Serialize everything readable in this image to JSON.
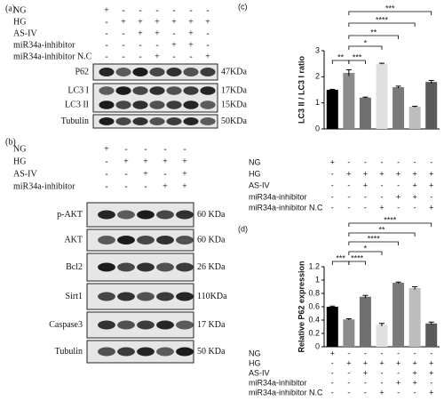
{
  "blots": [
    {
      "label": "(a)",
      "rows": [
        {
          "label": "NG",
          "signs": [
            "+",
            "-",
            "-",
            "-",
            "-",
            "-",
            "-"
          ]
        },
        {
          "label": "HG",
          "signs": [
            "-",
            "+",
            "+",
            "+",
            "+",
            "+",
            "+"
          ]
        },
        {
          "label": "AS-IV",
          "signs": [
            "-",
            "-",
            "+",
            "+",
            "-",
            "+",
            "-"
          ]
        },
        {
          "label": "miR34a-inhibitor",
          "signs": [
            "-",
            "-",
            "-",
            "-",
            "+",
            "+",
            "-"
          ]
        },
        {
          "label": "miR34a-inhibitor N.C",
          "signs": [
            "-",
            "-",
            "-",
            "+",
            "-",
            "-",
            "+"
          ]
        }
      ],
      "bands": [
        {
          "names": [
            "P62"
          ],
          "sizes": [
            "47KDa"
          ]
        },
        {
          "names": [
            "LC3 I",
            "LC3 II"
          ],
          "sizes": [
            "17KDa",
            "15KDa"
          ]
        },
        {
          "names": [
            "Tubulin"
          ],
          "sizes": [
            "50KDa"
          ]
        }
      ]
    },
    {
      "label": "(b)",
      "rows": [
        {
          "label": "NG",
          "signs": [
            "+",
            "-",
            "-",
            "-",
            "-"
          ]
        },
        {
          "label": "HG",
          "signs": [
            "-",
            "+",
            "+",
            "+",
            "+"
          ]
        },
        {
          "label": "AS-IV",
          "signs": [
            "-",
            "-",
            "+",
            "-",
            "+"
          ]
        },
        {
          "label": "miR34a-inhibitor",
          "signs": [
            "-",
            "-",
            "-",
            "+",
            "+"
          ]
        }
      ],
      "bands": [
        {
          "names": [
            "p-AKT"
          ],
          "sizes": [
            "60 KDa"
          ]
        },
        {
          "names": [
            "AKT"
          ],
          "sizes": [
            "60 KDa"
          ]
        },
        {
          "names": [
            "Bcl2"
          ],
          "sizes": [
            "26 KDa"
          ]
        },
        {
          "names": [
            "Sirt1"
          ],
          "sizes": [
            "110KDa"
          ]
        },
        {
          "names": [
            "Caspase3"
          ],
          "sizes": [
            "17 KDa"
          ]
        },
        {
          "names": [
            "Tubulin"
          ],
          "sizes": [
            "50 KDa"
          ]
        }
      ]
    }
  ],
  "chart_data": [
    {
      "type": "bar",
      "panel": "(c)",
      "ylabel": "LC3 II / LC3 I ratio",
      "values": [
        1.5,
        2.15,
        1.2,
        2.5,
        1.6,
        0.85,
        1.8
      ],
      "errors": [
        0.02,
        0.12,
        0.02,
        0.02,
        0.04,
        0.02,
        0.06
      ],
      "colors": [
        "#000000",
        "#8c8c8c",
        "#707070",
        "#e0e0e0",
        "#7a7a7a",
        "#bdbdbd",
        "#5a5a5a"
      ],
      "ylim": [
        0,
        3
      ],
      "yticks": [
        0,
        1,
        2,
        3
      ],
      "significance": [
        "**",
        "***",
        "*",
        "**",
        "****",
        "***"
      ],
      "conditions": [
        {
          "label": "NG",
          "signs": [
            "+",
            "-",
            "-",
            "-",
            "-",
            "-",
            "-"
          ]
        },
        {
          "label": "HG",
          "signs": [
            "-",
            "+",
            "+",
            "+",
            "+",
            "+",
            "+"
          ]
        },
        {
          "label": "AS-IV",
          "signs": [
            "-",
            "-",
            "+",
            "-",
            "-",
            "+",
            "+"
          ]
        },
        {
          "label": "miR34a-inhibitor",
          "signs": [
            "-",
            "-",
            "-",
            "-",
            "+",
            "+",
            "-"
          ]
        },
        {
          "label": "miR34a-inhibitor N.C",
          "signs": [
            "-",
            "-",
            "-",
            "+",
            "-",
            "-",
            "+"
          ]
        }
      ]
    },
    {
      "type": "bar",
      "panel": "(d)",
      "ylabel": "Relative P62 expression",
      "values": [
        0.6,
        0.41,
        0.75,
        0.33,
        0.96,
        0.88,
        0.35
      ],
      "errors": [
        0.01,
        0.01,
        0.02,
        0.02,
        0.01,
        0.02,
        0.02
      ],
      "colors": [
        "#000000",
        "#8c8c8c",
        "#707070",
        "#e0e0e0",
        "#7a7a7a",
        "#bdbdbd",
        "#5a5a5a"
      ],
      "ylim": [
        0,
        1.2
      ],
      "yticks": [
        0,
        0.2,
        0.4,
        0.6,
        0.8,
        1,
        1.2
      ],
      "significance": [
        "***",
        "****",
        "*",
        "****",
        "**",
        "****"
      ],
      "conditions": [
        {
          "label": "NG",
          "signs": [
            "+",
            "-",
            "-",
            "-",
            "-",
            "-",
            "-"
          ]
        },
        {
          "label": "HG",
          "signs": [
            "-",
            "+",
            "+",
            "+",
            "+",
            "+",
            "+"
          ]
        },
        {
          "label": "AS-IV",
          "signs": [
            "-",
            "-",
            "+",
            "-",
            "-",
            "+",
            "+"
          ]
        },
        {
          "label": "miR34a-inhibitor",
          "signs": [
            "-",
            "-",
            "-",
            "-",
            "+",
            "+",
            "-"
          ]
        },
        {
          "label": "miR34a-inhibitor N.C",
          "signs": [
            "-",
            "-",
            "-",
            "+",
            "-",
            "-",
            "+"
          ]
        }
      ]
    }
  ]
}
